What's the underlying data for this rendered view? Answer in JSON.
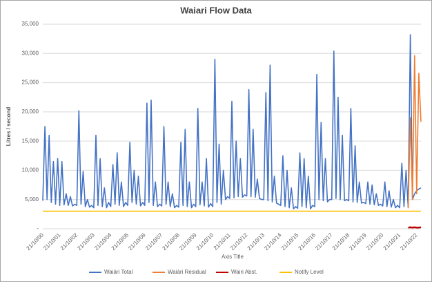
{
  "chart_data": {
    "type": "line",
    "title": "Waiari Flow Data",
    "x_label": "Axis Title",
    "y_label": "Litres / second",
    "categories": [
      "21/10/00",
      null,
      null,
      null,
      null,
      null,
      null,
      null,
      "21/10/01",
      null,
      null,
      null,
      null,
      null,
      null,
      null,
      "21/10/02",
      null,
      null,
      null,
      null,
      null,
      null,
      null,
      "21/10/03",
      null,
      null,
      null,
      null,
      null,
      null,
      null,
      "21/10/04",
      null,
      null,
      null,
      null,
      null,
      null,
      null,
      "21/10/05",
      null,
      null,
      null,
      null,
      null,
      null,
      null,
      "21/10/06",
      null,
      null,
      null,
      null,
      null,
      null,
      null,
      "21/10/07",
      null,
      null,
      null,
      null,
      null,
      null,
      null,
      "21/10/08",
      null,
      null,
      null,
      null,
      null,
      null,
      null,
      "21/10/09",
      null,
      null,
      null,
      null,
      null,
      null,
      null,
      "21/10/10",
      null,
      null,
      null,
      null,
      null,
      null,
      null,
      "21/10/11",
      null,
      null,
      null,
      null,
      null,
      null,
      null,
      "21/10/12",
      null,
      null,
      null,
      null,
      null,
      null,
      null,
      "21/10/13",
      null,
      null,
      null,
      null,
      null,
      null,
      null,
      "21/10/14",
      null,
      null,
      null,
      null,
      null,
      null,
      null,
      "21/10/15",
      null,
      null,
      null,
      null,
      null,
      null,
      null,
      "21/10/16",
      null,
      null,
      null,
      null,
      null,
      null,
      null,
      "21/10/17",
      null,
      null,
      null,
      null,
      null,
      null,
      null,
      "21/10/18",
      null,
      null,
      null,
      null,
      null,
      null,
      null,
      "21/10/19",
      null,
      null,
      null,
      null,
      null,
      null,
      null,
      "21/10/20",
      null,
      null,
      null,
      null,
      null,
      null,
      null,
      "21/10/21",
      null,
      null,
      null,
      null,
      null,
      null,
      null,
      "21/10/22",
      null,
      null
    ],
    "series": [
      {
        "name": "Waiāri Total",
        "color": "#4472c4",
        "values": [
          4800,
          17500,
          5000,
          16000,
          4500,
          11500,
          4200,
          12000,
          4000,
          11500,
          4100,
          6000,
          4000,
          5500,
          3900,
          4200,
          4000,
          20200,
          4200,
          9800,
          3800,
          5000,
          3700,
          4000,
          3600,
          16000,
          4000,
          12000,
          3800,
          7000,
          3600,
          4500,
          3800,
          11000,
          4200,
          13000,
          4000,
          8000,
          3800,
          4500,
          4000,
          14800,
          4500,
          10000,
          4200,
          9000,
          3900,
          4500,
          4000,
          21500,
          4500,
          22000,
          4000,
          8000,
          3800,
          4200,
          3900,
          17500,
          4200,
          8000,
          3800,
          6000,
          3600,
          4000,
          3700,
          14800,
          4000,
          17000,
          3800,
          8000,
          3600,
          4200,
          3800,
          20600,
          4100,
          8000,
          3900,
          12000,
          3700,
          4300,
          3800,
          29000,
          4500,
          14500,
          4200,
          10000,
          5000,
          5500,
          5200,
          21800,
          5300,
          15000,
          5500,
          12000,
          5400,
          5800,
          5600,
          23800,
          5500,
          17000,
          5400,
          8500,
          5200,
          5000,
          5000,
          23300,
          4800,
          28000,
          4600,
          9000,
          4400,
          4200,
          4000,
          12500,
          3800,
          10000,
          3600,
          7000,
          3400,
          3800,
          3500,
          13000,
          3800,
          12000,
          3600,
          9000,
          3400,
          4000,
          3800,
          26400,
          5000,
          18200,
          4800,
          12000,
          4600,
          5000,
          5000,
          30400,
          5200,
          22500,
          5000,
          16000,
          4800,
          5000,
          4800,
          20600,
          4600,
          14200,
          4500,
          8000,
          4400,
          4500,
          4300,
          8000,
          4200,
          7500,
          4100,
          6000,
          4000,
          4200,
          3900,
          8000,
          3800,
          6500,
          3700,
          5000,
          3600,
          4000,
          3600,
          11200,
          3800,
          10000,
          3700,
          33200,
          5000,
          6000,
          6500,
          6800,
          7000
        ]
      },
      {
        "name": "Waiāri Residual",
        "color": "#ed7d31",
        "values": [
          null,
          null,
          null,
          null,
          null,
          null,
          null,
          null,
          null,
          null,
          null,
          null,
          null,
          null,
          null,
          null,
          null,
          null,
          null,
          null,
          null,
          null,
          null,
          null,
          null,
          null,
          null,
          null,
          null,
          null,
          null,
          null,
          null,
          null,
          null,
          null,
          null,
          null,
          null,
          null,
          null,
          null,
          null,
          null,
          null,
          null,
          null,
          null,
          null,
          null,
          null,
          null,
          null,
          null,
          null,
          null,
          null,
          null,
          null,
          null,
          null,
          null,
          null,
          null,
          null,
          null,
          null,
          null,
          null,
          null,
          null,
          null,
          null,
          null,
          null,
          null,
          null,
          null,
          null,
          null,
          null,
          null,
          null,
          null,
          null,
          null,
          null,
          null,
          null,
          null,
          null,
          null,
          null,
          null,
          null,
          null,
          null,
          null,
          null,
          null,
          null,
          null,
          null,
          null,
          null,
          null,
          null,
          null,
          null,
          null,
          null,
          null,
          null,
          null,
          null,
          null,
          null,
          null,
          null,
          null,
          null,
          null,
          null,
          null,
          null,
          null,
          null,
          null,
          null,
          null,
          null,
          null,
          null,
          null,
          null,
          null,
          null,
          null,
          null,
          null,
          null,
          null,
          null,
          null,
          null,
          null,
          null,
          null,
          null,
          null,
          null,
          null,
          null,
          null,
          null,
          null,
          null,
          null,
          null,
          null,
          null,
          null,
          null,
          null,
          null,
          null,
          null,
          null,
          null,
          null,
          null,
          null,
          3500,
          19000,
          5000,
          29600,
          6000,
          26600,
          18300
        ]
      },
      {
        "name": "Wairi Abst.",
        "color": "#c00000",
        "values": [
          null,
          null,
          null,
          null,
          null,
          null,
          null,
          null,
          null,
          null,
          null,
          null,
          null,
          null,
          null,
          null,
          null,
          null,
          null,
          null,
          null,
          null,
          null,
          null,
          null,
          null,
          null,
          null,
          null,
          null,
          null,
          null,
          null,
          null,
          null,
          null,
          null,
          null,
          null,
          null,
          null,
          null,
          null,
          null,
          null,
          null,
          null,
          null,
          null,
          null,
          null,
          null,
          null,
          null,
          null,
          null,
          null,
          null,
          null,
          null,
          null,
          null,
          null,
          null,
          null,
          null,
          null,
          null,
          null,
          null,
          null,
          null,
          null,
          null,
          null,
          null,
          null,
          null,
          null,
          null,
          null,
          null,
          null,
          null,
          null,
          null,
          null,
          null,
          null,
          null,
          null,
          null,
          null,
          null,
          null,
          null,
          null,
          null,
          null,
          null,
          null,
          null,
          null,
          null,
          null,
          null,
          null,
          null,
          null,
          null,
          null,
          null,
          null,
          null,
          null,
          null,
          null,
          null,
          null,
          null,
          null,
          null,
          null,
          null,
          null,
          null,
          null,
          null,
          null,
          null,
          null,
          null,
          null,
          null,
          null,
          null,
          null,
          null,
          null,
          null,
          null,
          null,
          null,
          null,
          null,
          null,
          null,
          null,
          null,
          null,
          null,
          null,
          null,
          null,
          null,
          null,
          null,
          null,
          null,
          null,
          null,
          null,
          null,
          null,
          null,
          null,
          null,
          null,
          null,
          null,
          null,
          null,
          200,
          250,
          200,
          250,
          200,
          200,
          250
        ]
      },
      {
        "name": "Notify Level",
        "color": "#ffc000",
        "values": [
          3000,
          3000,
          3000,
          3000,
          3000,
          3000,
          3000,
          3000,
          3000,
          3000,
          3000,
          3000,
          3000,
          3000,
          3000,
          3000,
          3000,
          3000,
          3000,
          3000,
          3000,
          3000,
          3000,
          3000,
          3000,
          3000,
          3000,
          3000,
          3000,
          3000,
          3000,
          3000,
          3000,
          3000,
          3000,
          3000,
          3000,
          3000,
          3000,
          3000,
          3000,
          3000,
          3000,
          3000,
          3000,
          3000,
          3000,
          3000,
          3000,
          3000,
          3000,
          3000,
          3000,
          3000,
          3000,
          3000,
          3000,
          3000,
          3000,
          3000,
          3000,
          3000,
          3000,
          3000,
          3000,
          3000,
          3000,
          3000,
          3000,
          3000,
          3000,
          3000,
          3000,
          3000,
          3000,
          3000,
          3000,
          3000,
          3000,
          3000,
          3000,
          3000,
          3000,
          3000,
          3000,
          3000,
          3000,
          3000,
          3000,
          3000,
          3000,
          3000,
          3000,
          3000,
          3000,
          3000,
          3000,
          3000,
          3000,
          3000,
          3000,
          3000,
          3000,
          3000,
          3000,
          3000,
          3000,
          3000,
          3000,
          3000,
          3000,
          3000,
          3000,
          3000,
          3000,
          3000,
          3000,
          3000,
          3000,
          3000,
          3000,
          3000,
          3000,
          3000,
          3000,
          3000,
          3000,
          3000,
          3000,
          3000,
          3000,
          3000,
          3000,
          3000,
          3000,
          3000,
          3000,
          3000,
          3000,
          3000,
          3000,
          3000,
          3000,
          3000,
          3000,
          3000,
          3000,
          3000,
          3000,
          3000,
          3000,
          3000,
          3000,
          3000,
          3000,
          3000,
          3000,
          3000,
          3000,
          3000,
          3000,
          3000,
          3000,
          3000,
          3000,
          3000,
          3000,
          3000,
          3000,
          3000,
          3000,
          3000,
          3000,
          3000,
          3000,
          3000,
          3000,
          3000,
          3000
        ]
      }
    ],
    "ylim": [
      0,
      35000
    ],
    "yticks": [
      {
        "value": 0,
        "label": "-"
      },
      {
        "value": 5000,
        "label": "5,000"
      },
      {
        "value": 10000,
        "label": "10,000"
      },
      {
        "value": 15000,
        "label": "15,000"
      },
      {
        "value": 20000,
        "label": "20,000"
      },
      {
        "value": 25000,
        "label": "25,000"
      },
      {
        "value": 30000,
        "label": "30,000"
      },
      {
        "value": 35000,
        "label": "35,000"
      }
    ],
    "grid": true,
    "legend": "bottom"
  }
}
